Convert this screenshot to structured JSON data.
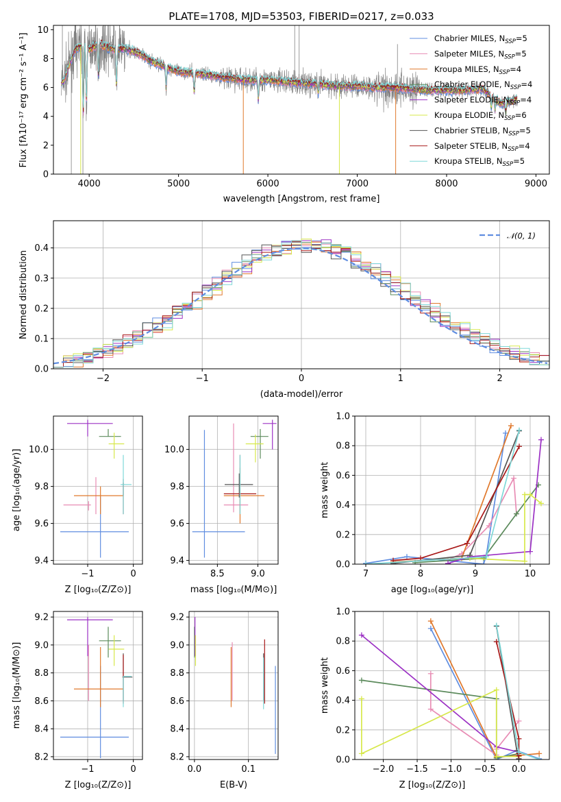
{
  "colors": {
    "chabrier_miles": "#5f8de0",
    "salpeter_miles": "#e88cb4",
    "kroupa_miles": "#e0782b",
    "chabrier_elodie": "#5b8a5b",
    "salpeter_elodie": "#9b30c4",
    "kroupa_elodie": "#d7e84a",
    "chabrier_stelib": "#555555",
    "salpeter_stelib": "#a81818",
    "kroupa_stelib": "#7fd8d8",
    "data": "#808080"
  },
  "chart_data": [
    {
      "id": "spectrum",
      "type": "line",
      "title": "PLATE=1708, MJD=53503, FIBERID=0217, z=0.033",
      "xlabel": "wavelength [Angstrom, rest frame]",
      "ylabel": "Flux [fλ10⁻¹⁷ erg cm⁻² s⁻¹ A⁻¹]",
      "xlim": [
        3600,
        9150
      ],
      "ylim": [
        0,
        10.3
      ],
      "xticks": [
        "4000",
        "5000",
        "6000",
        "7000",
        "8000",
        "9000"
      ],
      "yticks": [
        "0",
        "2",
        "4",
        "6",
        "8",
        "10"
      ],
      "continuum": {
        "x": [
          3680,
          3720,
          3800,
          3850,
          3900,
          3950,
          4000,
          4100,
          4200,
          4300,
          4400,
          4500,
          4600,
          4700,
          4800,
          4900,
          5000,
          5200,
          5400,
          5600,
          5800,
          6000,
          6200,
          6400,
          6600,
          6800,
          7000,
          7200,
          7400,
          7600,
          7800,
          8000,
          8200,
          8400,
          8600,
          8700,
          8800
        ],
        "y": [
          6.2,
          6.5,
          8.0,
          8.7,
          8.8,
          8.9,
          8.6,
          9.0,
          8.8,
          8.6,
          8.7,
          8.5,
          8.2,
          7.8,
          7.6,
          7.3,
          7.1,
          7.0,
          6.8,
          6.6,
          6.5,
          6.5,
          6.4,
          6.3,
          6.2,
          6.1,
          6.1,
          6.0,
          6.0,
          5.9,
          5.8,
          5.8,
          5.8,
          5.9,
          4.9,
          5.0,
          5.2
        ]
      },
      "legend": [
        {
          "label": "Chabrier MILES, N_SSP=5",
          "color_key": "chabrier_miles"
        },
        {
          "label": "Salpeter MILES, N_SSP=5",
          "color_key": "salpeter_miles"
        },
        {
          "label": "Kroupa MILES, N_SSP=4",
          "color_key": "kroupa_miles"
        },
        {
          "label": "Chabrier ELODIE, N_SSP=4",
          "color_key": "chabrier_elodie"
        },
        {
          "label": "Salpeter ELODIE, N_SSP=4",
          "color_key": "salpeter_elodie"
        },
        {
          "label": "Kroupa ELODIE, N_SSP=6",
          "color_key": "kroupa_elodie"
        },
        {
          "label": "Chabrier STELIB, N_SSP=5",
          "color_key": "chabrier_stelib"
        },
        {
          "label": "Salpeter STELIB, N_SSP=4",
          "color_key": "salpeter_stelib"
        },
        {
          "label": "Kroupa STELIB, N_SSP=5",
          "color_key": "kroupa_stelib"
        }
      ],
      "legend_loc": "upper right"
    },
    {
      "id": "residuals",
      "type": "histogram",
      "xlabel": "(data-model)/error",
      "ylabel": "Normed distribution",
      "xlim": [
        -2.5,
        2.5
      ],
      "ylim": [
        0,
        0.49
      ],
      "xticks": [
        "−2",
        "−1",
        "0",
        "1",
        "2"
      ],
      "yticks": [
        "0.0",
        "0.1",
        "0.2",
        "0.3",
        "0.4"
      ],
      "legend": "𝒩(0, 1)",
      "grid": true
    },
    {
      "id": "age_vs_Z",
      "type": "errorbar",
      "xlabel": "Z [log₁₀(Z/Z⊙)]",
      "ylabel": "age  [log₁₀(age/yr)]",
      "xlim": [
        -1.75,
        0.2
      ],
      "ylim": [
        9.38,
        10.18
      ],
      "xticks": [
        "−1",
        "0"
      ],
      "yticks": [
        "9.4",
        "9.6",
        "9.8",
        "10.0"
      ],
      "points": [
        {
          "x": -0.72,
          "y": 9.555,
          "xerr": [
            0.88,
            0.62
          ],
          "yerr": [
            0.14,
            0.19
          ],
          "color_key": "chabrier_miles"
        },
        {
          "x": -0.98,
          "y": 9.7,
          "xerr": [
            0.55,
            0.05
          ],
          "yerr": [
            0.03,
            0.02
          ],
          "color_key": "salpeter_miles"
        },
        {
          "x": -0.82,
          "y": 9.75,
          "xerr": [
            0.0,
            0.0
          ],
          "yerr": [
            0.1,
            0.1
          ],
          "color_key": "salpeter_miles"
        },
        {
          "x": -0.72,
          "y": 9.75,
          "xerr": [
            0.58,
            0.5
          ],
          "yerr": [
            0.1,
            0.05
          ],
          "color_key": "kroupa_miles"
        },
        {
          "x": -0.55,
          "y": 10.07,
          "xerr": [
            0.2,
            0.28
          ],
          "yerr": [
            0.0,
            0.04
          ],
          "color_key": "chabrier_elodie"
        },
        {
          "x": -1.0,
          "y": 10.14,
          "xerr": [
            0.45,
            0.55
          ],
          "yerr": [
            0.07,
            0.02
          ],
          "color_key": "salpeter_elodie"
        },
        {
          "x": -0.42,
          "y": 10.03,
          "xerr": [
            0.12,
            0.22
          ],
          "yerr": [
            0.08,
            0.06
          ],
          "color_key": "kroupa_elodie"
        },
        {
          "x": -0.22,
          "y": 9.81,
          "xerr": [
            0.02,
            0.02
          ],
          "yerr": [
            0.06,
            0.03
          ],
          "color_key": "chabrier_stelib"
        },
        {
          "x": -0.22,
          "y": 9.76,
          "xerr": [
            0.0,
            0.0
          ],
          "yerr": [
            0.11,
            0.06
          ],
          "color_key": "salpeter_stelib"
        },
        {
          "x": -0.22,
          "y": 9.81,
          "xerr": [
            0.06,
            0.18
          ],
          "yerr": [
            0.16,
            0.16
          ],
          "color_key": "kroupa_stelib"
        }
      ]
    },
    {
      "id": "age_vs_mass",
      "type": "errorbar",
      "xlabel": "mass [log₁₀(M/M⊙)]",
      "xlim": [
        8.15,
        9.25
      ],
      "ylim": [
        9.38,
        10.18
      ],
      "xticks": [
        "8.5",
        "9.0"
      ],
      "yticks": [
        "9.4",
        "9.6",
        "9.8",
        "10.0"
      ],
      "points": [
        {
          "x": 8.34,
          "y": 9.555,
          "xerr": [
            0.15,
            0.5
          ],
          "yerr": [
            0.14,
            0.55
          ],
          "color_key": "chabrier_miles"
        },
        {
          "x": 8.7,
          "y": 9.7,
          "xerr": [
            0.12,
            0.18
          ],
          "yerr": [
            0.04,
            0.44
          ],
          "color_key": "salpeter_miles"
        },
        {
          "x": 8.78,
          "y": 9.75,
          "xerr": [
            0.2,
            0.3
          ],
          "yerr": [
            0.15,
            0.15
          ],
          "color_key": "kroupa_miles"
        },
        {
          "x": 9.03,
          "y": 10.07,
          "xerr": [
            0.12,
            0.1
          ],
          "yerr": [
            0.12,
            0.04
          ],
          "color_key": "chabrier_elodie"
        },
        {
          "x": 9.18,
          "y": 10.14,
          "xerr": [
            0.12,
            0.05
          ],
          "yerr": [
            0.14,
            0.02
          ],
          "color_key": "salpeter_elodie"
        },
        {
          "x": 8.97,
          "y": 10.03,
          "xerr": [
            0.12,
            0.1
          ],
          "yerr": [
            0.1,
            0.05
          ],
          "color_key": "kroupa_elodie"
        },
        {
          "x": 8.77,
          "y": 9.81,
          "xerr": [
            0.18,
            0.17
          ],
          "yerr": [
            0.07,
            0.06
          ],
          "color_key": "chabrier_stelib"
        },
        {
          "x": 8.78,
          "y": 9.76,
          "xerr": [
            0.2,
            0.2
          ],
          "yerr": [
            0.11,
            0.21
          ],
          "color_key": "salpeter_stelib"
        },
        {
          "x": 8.78,
          "y": 9.81,
          "xerr": [
            0.0,
            0.0
          ],
          "yerr": [
            0.16,
            0.16
          ],
          "color_key": "kroupa_stelib"
        }
      ]
    },
    {
      "id": "massweight_vs_age",
      "type": "line",
      "xlabel": "age  [log₁₀(age/yr)]",
      "ylabel": "mass weight",
      "xlim": [
        6.8,
        10.35
      ],
      "ylim": [
        0,
        1.0
      ],
      "xticks": [
        "7",
        "8",
        "9",
        "10"
      ],
      "yticks": [
        "0.0",
        "0.2",
        "0.4",
        "0.6",
        "0.8",
        "1.0"
      ],
      "series": [
        {
          "color_key": "chabrier_miles",
          "x": [
            7.0,
            7.75,
            9.15,
            9.2,
            9.55
          ],
          "y": [
            0.005,
            0.05,
            0.0,
            0.06,
            0.885
          ]
        },
        {
          "color_key": "salpeter_miles",
          "x": [
            8.5,
            8.75,
            9.25,
            9.7,
            9.75
          ],
          "y": [
            0.03,
            0.07,
            0.26,
            0.58,
            0.34
          ]
        },
        {
          "color_key": "kroupa_miles",
          "x": [
            7.5,
            8.75,
            9.65
          ],
          "y": [
            0.015,
            0.04,
            0.935
          ]
        },
        {
          "color_key": "chabrier_elodie",
          "x": [
            7.9,
            9.15,
            9.75,
            10.15
          ],
          "y": [
            0.01,
            0.04,
            0.34,
            0.535
          ]
        },
        {
          "color_key": "salpeter_elodie",
          "x": [
            8.5,
            8.9,
            10.0,
            10.2
          ],
          "y": [
            0.005,
            0.05,
            0.085,
            0.84
          ]
        },
        {
          "color_key": "kroupa_elodie",
          "x": [
            8.9,
            9.9,
            9.9,
            10.0,
            10.2
          ],
          "y": [
            0.04,
            0.02,
            0.47,
            0.47,
            0.41
          ]
        },
        {
          "color_key": "chabrier_stelib",
          "x": [
            7.5,
            8.9,
            9.8
          ],
          "y": [
            0.005,
            0.06,
            0.9
          ]
        },
        {
          "color_key": "salpeter_stelib",
          "x": [
            7.5,
            8.0,
            8.85,
            9.8
          ],
          "y": [
            0.025,
            0.04,
            0.14,
            0.795
          ]
        },
        {
          "color_key": "kroupa_stelib",
          "x": [
            7.0,
            9.2,
            9.8
          ],
          "y": [
            0.0,
            0.05,
            0.905
          ]
        }
      ],
      "grid": true
    },
    {
      "id": "mass_vs_Z",
      "type": "errorbar",
      "xlabel": "Z [log₁₀(Z/Z⊙)]",
      "ylabel": "mass [log₁₀(M/M⊙)]",
      "xlim": [
        -1.75,
        0.2
      ],
      "ylim": [
        8.18,
        9.24
      ],
      "xticks": [
        "−1",
        "0"
      ],
      "yticks": [
        "8.2",
        "8.4",
        "8.6",
        "8.8",
        "9.0",
        "9.2"
      ],
      "points": [
        {
          "x": -0.72,
          "y": 8.34,
          "xerr": [
            0.88,
            0.62
          ],
          "yerr": [
            0.15,
            0.51
          ],
          "color_key": "chabrier_miles"
        },
        {
          "x": -0.98,
          "y": 8.7,
          "xerr": [
            0.0,
            0.0
          ],
          "yerr": [
            0.1,
            0.3
          ],
          "color_key": "salpeter_miles"
        },
        {
          "x": -0.72,
          "y": 8.685,
          "xerr": [
            0.58,
            0.5
          ],
          "yerr": [
            0.13,
            0.3
          ],
          "color_key": "kroupa_miles"
        },
        {
          "x": -0.55,
          "y": 9.03,
          "xerr": [
            0.2,
            0.28
          ],
          "yerr": [
            0.12,
            0.1
          ],
          "color_key": "chabrier_elodie"
        },
        {
          "x": -1.0,
          "y": 9.18,
          "xerr": [
            0.45,
            0.55
          ],
          "yerr": [
            0.26,
            0.02
          ],
          "color_key": "salpeter_elodie"
        },
        {
          "x": -0.42,
          "y": 8.97,
          "xerr": [
            0.12,
            0.22
          ],
          "yerr": [
            0.12,
            0.1
          ],
          "color_key": "kroupa_elodie"
        },
        {
          "x": -0.22,
          "y": 8.77,
          "xerr": [
            0.02,
            0.2
          ],
          "yerr": [
            0.17,
            0.17
          ],
          "color_key": "chabrier_stelib"
        },
        {
          "x": -0.22,
          "y": 8.78,
          "xerr": [
            0.0,
            0.0
          ],
          "yerr": [
            0.2,
            0.15
          ],
          "color_key": "salpeter_stelib"
        },
        {
          "x": -0.22,
          "y": 8.775,
          "xerr": [
            0.0,
            0.18
          ],
          "yerr": [
            0.22,
            0.0
          ],
          "color_key": "kroupa_stelib"
        }
      ]
    },
    {
      "id": "mass_vs_EBV",
      "type": "errorbar",
      "xlabel": "E(B-V)",
      "xlim": [
        -0.01,
        0.155
      ],
      "ylim": [
        8.18,
        9.24
      ],
      "xticks": [
        "0.0",
        "0.1"
      ],
      "yticks": [
        "8.2",
        "8.4",
        "8.6",
        "8.8",
        "9.0",
        "9.2"
      ],
      "points": [
        {
          "x": 0.15,
          "y": 8.34,
          "xerr": [
            0,
            0
          ],
          "yerr": [
            0.12,
            0.51
          ],
          "color_key": "chabrier_miles"
        },
        {
          "x": 0.07,
          "y": 8.7,
          "xerr": [
            0,
            0
          ],
          "yerr": [
            0.1,
            0.32
          ],
          "color_key": "salpeter_miles"
        },
        {
          "x": 0.068,
          "y": 8.685,
          "xerr": [
            0,
            0
          ],
          "yerr": [
            0.13,
            0.3
          ],
          "color_key": "kroupa_miles"
        },
        {
          "x": 0.0,
          "y": 9.03,
          "xerr": [
            0,
            0
          ],
          "yerr": [
            0.12,
            0.1
          ],
          "color_key": "chabrier_elodie"
        },
        {
          "x": 0.001,
          "y": 9.18,
          "xerr": [
            0,
            0
          ],
          "yerr": [
            0.26,
            0.02
          ],
          "color_key": "salpeter_elodie"
        },
        {
          "x": 0.002,
          "y": 8.97,
          "xerr": [
            0,
            0
          ],
          "yerr": [
            0.12,
            0.1
          ],
          "color_key": "kroupa_elodie"
        },
        {
          "x": 0.128,
          "y": 8.77,
          "xerr": [
            0,
            0
          ],
          "yerr": [
            0.17,
            0.17
          ],
          "color_key": "chabrier_stelib"
        },
        {
          "x": 0.13,
          "y": 8.78,
          "xerr": [
            0,
            0
          ],
          "yerr": [
            0.2,
            0.26
          ],
          "color_key": "salpeter_stelib"
        },
        {
          "x": 0.128,
          "y": 8.76,
          "xerr": [
            0,
            0
          ],
          "yerr": [
            0.22,
            0.15
          ],
          "color_key": "kroupa_stelib"
        }
      ]
    },
    {
      "id": "massweight_vs_Z",
      "type": "line",
      "xlabel": "Z [log₁₀(Z/Z⊙)]",
      "ylabel": "mass weight",
      "xlim": [
        -2.42,
        0.45
      ],
      "ylim": [
        0,
        1.0
      ],
      "xticks": [
        "−2.0",
        "−1.5",
        "−1.0",
        "−0.5",
        "0.0"
      ],
      "yticks": [
        "0.0",
        "0.2",
        "0.4",
        "0.6",
        "0.8",
        "1.0"
      ],
      "series": [
        {
          "color_key": "chabrier_miles",
          "x": [
            -1.3,
            -0.33,
            -0.03,
            0.3
          ],
          "y": [
            0.885,
            0.0,
            0.06,
            0.005
          ]
        },
        {
          "color_key": "salpeter_miles",
          "x": [
            -1.3,
            -1.3,
            -0.33,
            -0.33,
            0.0
          ],
          "y": [
            0.58,
            0.34,
            0.03,
            0.07,
            0.26
          ]
        },
        {
          "color_key": "kroupa_miles",
          "x": [
            -1.3,
            -0.33,
            0.3
          ],
          "y": [
            0.935,
            0.015,
            0.04
          ]
        },
        {
          "color_key": "chabrier_elodie",
          "x": [
            -2.32,
            -0.33,
            -0.33,
            0.0
          ],
          "y": [
            0.535,
            0.41,
            0.01,
            0.04
          ]
        },
        {
          "color_key": "salpeter_elodie",
          "x": [
            -2.32,
            -0.33,
            0.0,
            0.0
          ],
          "y": [
            0.84,
            0.085,
            0.05,
            0.005
          ]
        },
        {
          "color_key": "kroupa_elodie",
          "x": [
            -2.32,
            -2.32,
            -0.33,
            -0.33,
            0.0
          ],
          "y": [
            0.41,
            0.04,
            0.47,
            0.02,
            0.02
          ]
        },
        {
          "color_key": "chabrier_stelib",
          "x": [
            -0.33,
            -0.03,
            0.0
          ],
          "y": [
            0.9,
            0.06,
            0.005
          ]
        },
        {
          "color_key": "salpeter_stelib",
          "x": [
            -0.33,
            0.0,
            0.0,
            0.0
          ],
          "y": [
            0.795,
            0.14,
            0.04,
            0.025
          ]
        },
        {
          "color_key": "kroupa_stelib",
          "x": [
            -0.33,
            0.0,
            0.3
          ],
          "y": [
            0.905,
            0.05,
            0.0
          ]
        }
      ],
      "grid": true
    }
  ]
}
